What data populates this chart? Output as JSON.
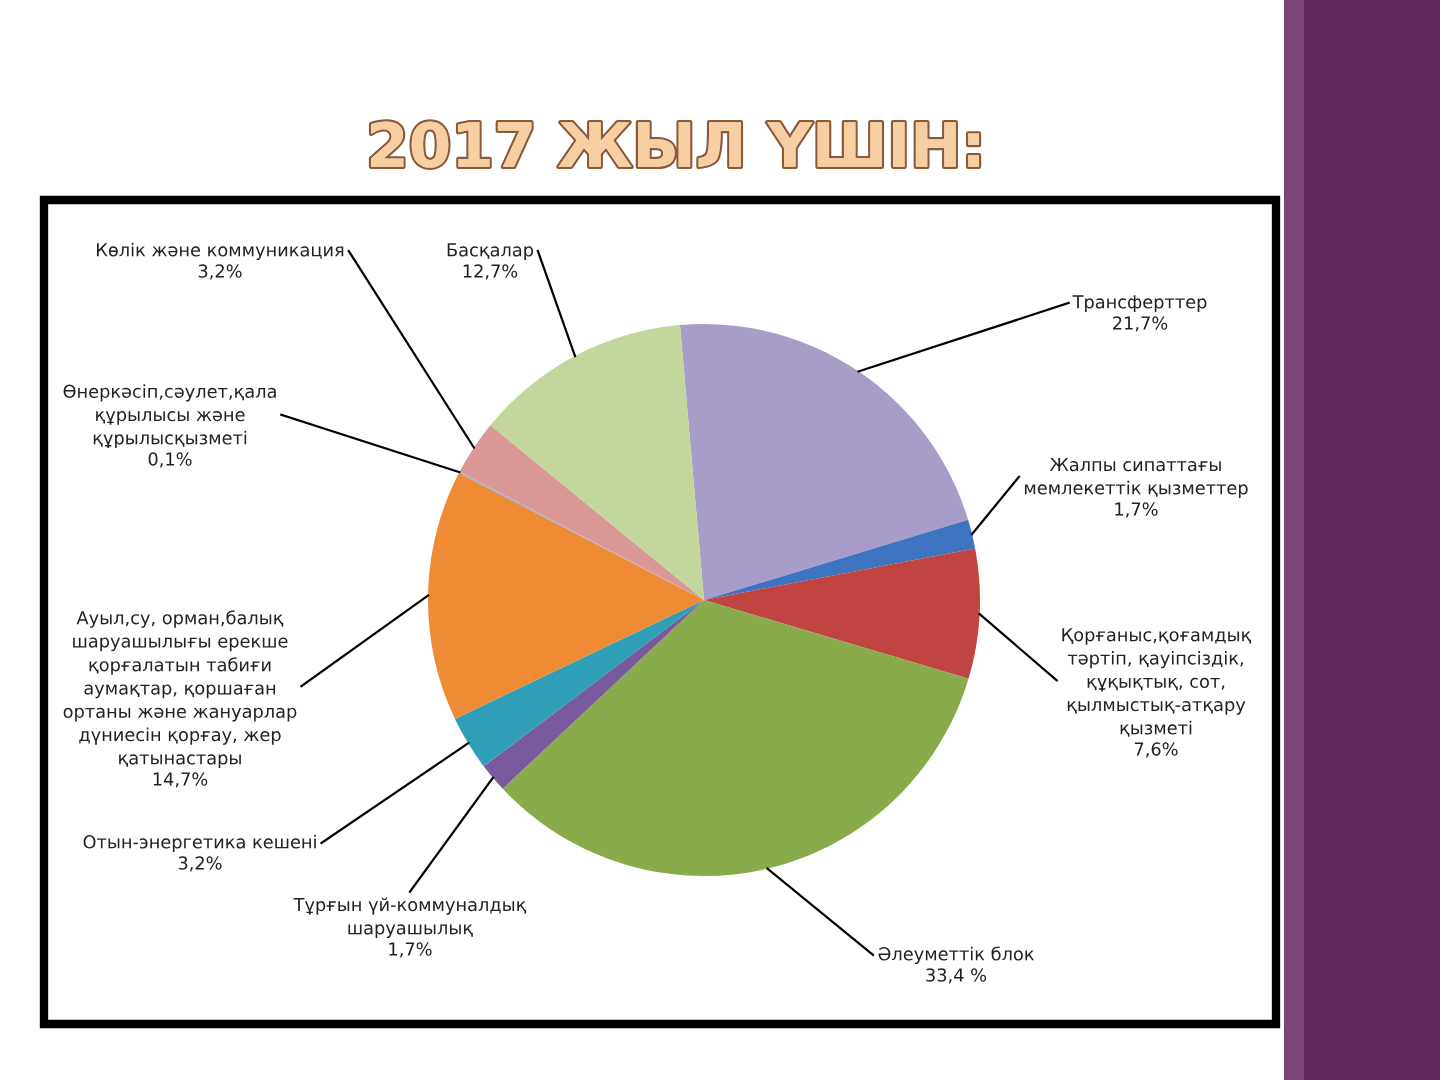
{
  "chart_data": {
    "type": "pie",
    "title": "2017 ЖЫЛ ҮШІН:",
    "categories": [
      "Трансферттер",
      "Жалпы сипаттағы\nмемлекеттік қызметтер",
      "Қорғаныс,қоғамдық\nтәртіп, қауіпсіздік,\nқұқықтық, сот,\nқылмыстық-атқару\nқызметі",
      "Әлеуметтік блок",
      "Тұрғын үй-коммуналдық\nшаруашылық",
      "Отын-энергетика кешені",
      "Ауыл,су, орман,балық\nшаруашылығы ерекше\nқорғалатын табиғи\nаумақтар, қоршаған\nортаны және жануарлар\nдүниесін қорғау, жер\nқатынастары",
      "Өнеркәсіп,сәулет,қала\nқұрылысы және\nқұрылысқызметі",
      "Көлік және коммуникация",
      "Басқалар"
    ],
    "values": [
      21.7,
      1.7,
      7.6,
      33.4,
      1.7,
      3.2,
      14.7,
      0.1,
      3.2,
      12.7
    ],
    "colors": [
      "#a89dc8",
      "#3f74c0",
      "#c0443f",
      "#8aab4c",
      "#7a5a9e",
      "#2f9fb8",
      "#ef8a35",
      "#95b3d7",
      "#d99795",
      "#c3d69b"
    ],
    "value_labels": [
      "21,7%",
      "1,7%",
      "7,6%",
      "33,4 %",
      "1,7%",
      "3,2%",
      "14,7%",
      "0,1%",
      "3,2%",
      "12,7%"
    ]
  }
}
